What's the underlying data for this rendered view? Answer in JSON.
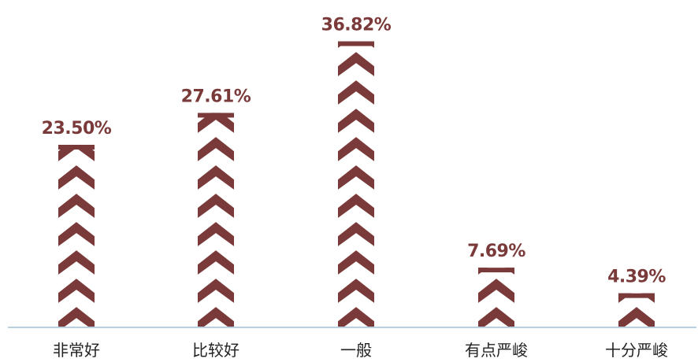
{
  "chart_data": {
    "type": "bar",
    "categories": [
      "非常好",
      "比较好",
      "一般",
      "有点严峻",
      "十分严峻"
    ],
    "values": [
      23.5,
      27.61,
      36.82,
      7.69,
      4.39
    ],
    "value_labels": [
      "23.50%",
      "27.61%",
      "36.82%",
      "7.69%",
      "4.39%"
    ],
    "title": "",
    "xlabel": "",
    "ylabel": "",
    "ylim": [
      0,
      40
    ],
    "grid": false,
    "legend": "none",
    "bar_style": "stacked-chevron-pictograph"
  },
  "colors": {
    "bar": "#7a3a3a",
    "value_label": "#7a3a3a",
    "category_label": "#222222",
    "axis": "#b8cfe0",
    "background": "#ffffff"
  }
}
